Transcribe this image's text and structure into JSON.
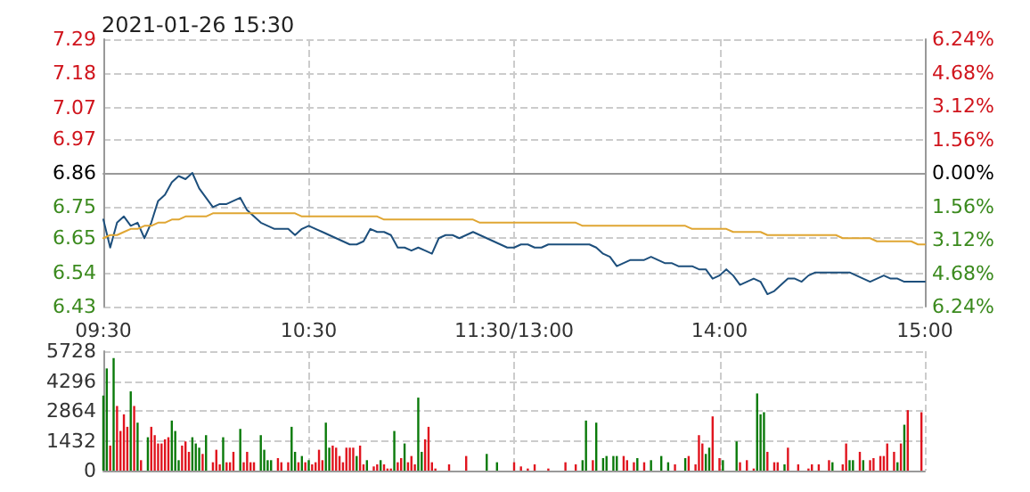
{
  "chart_data": [
    {
      "type": "line",
      "title": "2021-01-26 15:30",
      "categories": [
        "09:30",
        null,
        null,
        null,
        null,
        null,
        null,
        null,
        null,
        null,
        null,
        null,
        null,
        null,
        null,
        null,
        null,
        null,
        null,
        null,
        null,
        null,
        null,
        null,
        null,
        null,
        null,
        null,
        null,
        null,
        "10:30",
        null,
        null,
        null,
        null,
        null,
        null,
        null,
        null,
        null,
        null,
        null,
        null,
        null,
        null,
        null,
        null,
        null,
        null,
        null,
        null,
        null,
        null,
        null,
        null,
        null,
        null,
        null,
        null,
        null,
        "11:30/13:00",
        null,
        null,
        null,
        null,
        null,
        null,
        null,
        null,
        null,
        null,
        null,
        null,
        null,
        null,
        null,
        null,
        null,
        null,
        null,
        null,
        null,
        null,
        null,
        null,
        null,
        null,
        null,
        null,
        null,
        "14:00",
        null,
        null,
        null,
        null,
        null,
        null,
        null,
        null,
        null,
        null,
        null,
        null,
        null,
        null,
        null,
        null,
        null,
        null,
        null,
        null,
        null,
        null,
        null,
        null,
        null,
        null,
        null,
        null,
        null,
        "15:00"
      ],
      "ylim": [
        6.43,
        7.29
      ],
      "yticks": [
        6.43,
        6.54,
        6.65,
        6.75,
        6.86,
        6.97,
        7.07,
        7.18,
        7.29
      ],
      "y2lim": [
        -6.24,
        6.24
      ],
      "y2ticks": [
        {
          "value": -6.24,
          "label": "6.24%"
        },
        {
          "value": -4.68,
          "label": "4.68%"
        },
        {
          "value": -3.12,
          "label": "3.12%"
        },
        {
          "value": -1.56,
          "label": "1.56%"
        },
        {
          "value": 0,
          "label": "0.00%"
        },
        {
          "value": 1.56,
          "label": "1.56%"
        },
        {
          "value": 3.12,
          "label": "3.12%"
        },
        {
          "value": 4.68,
          "label": "4.68%"
        },
        {
          "value": 6.24,
          "label": "6.24%"
        }
      ],
      "grid": true,
      "marker": "none",
      "line_style": "solid",
      "series": [
        {
          "color": "#1d4f7c",
          "values": [
            6.71,
            6.62,
            6.7,
            6.72,
            6.69,
            6.7,
            6.65,
            6.7,
            6.77,
            6.79,
            6.83,
            6.85,
            6.84,
            6.86,
            6.81,
            6.78,
            6.75,
            6.76,
            6.76,
            6.77,
            6.78,
            6.74,
            6.72,
            6.7,
            6.69,
            6.68,
            6.68,
            6.68,
            6.66,
            6.68,
            6.69,
            6.68,
            6.67,
            6.66,
            6.65,
            6.64,
            6.63,
            6.63,
            6.64,
            6.68,
            6.67,
            6.67,
            6.66,
            6.62,
            6.62,
            6.61,
            6.62,
            6.61,
            6.6,
            6.65,
            6.66,
            6.66,
            6.65,
            6.66,
            6.67,
            6.66,
            6.65,
            6.64,
            6.63,
            6.62,
            6.62,
            6.63,
            6.63,
            6.62,
            6.62,
            6.63,
            6.63,
            6.63,
            6.63,
            6.63,
            6.63,
            6.63,
            6.62,
            6.6,
            6.59,
            6.56,
            6.57,
            6.58,
            6.58,
            6.58,
            6.59,
            6.58,
            6.57,
            6.57,
            6.56,
            6.56,
            6.56,
            6.55,
            6.55,
            6.52,
            6.53,
            6.55,
            6.53,
            6.5,
            6.51,
            6.52,
            6.51,
            6.47,
            6.48,
            6.5,
            6.52,
            6.52,
            6.51,
            6.53,
            6.54,
            6.54,
            6.54,
            6.54,
            6.54,
            6.54,
            6.53,
            6.52,
            6.51,
            6.52,
            6.53,
            6.52,
            6.52,
            6.51,
            6.51,
            6.51,
            6.51
          ]
        },
        {
          "color": "#e0a633",
          "values": [
            6.65,
            6.66,
            6.66,
            6.67,
            6.68,
            6.68,
            6.69,
            6.69,
            6.7,
            6.7,
            6.71,
            6.71,
            6.72,
            6.72,
            6.72,
            6.72,
            6.73,
            6.73,
            6.73,
            6.73,
            6.73,
            6.73,
            6.73,
            6.73,
            6.73,
            6.73,
            6.73,
            6.73,
            6.73,
            6.72,
            6.72,
            6.72,
            6.72,
            6.72,
            6.72,
            6.72,
            6.72,
            6.72,
            6.72,
            6.72,
            6.72,
            6.71,
            6.71,
            6.71,
            6.71,
            6.71,
            6.71,
            6.71,
            6.71,
            6.71,
            6.71,
            6.71,
            6.71,
            6.71,
            6.71,
            6.7,
            6.7,
            6.7,
            6.7,
            6.7,
            6.7,
            6.7,
            6.7,
            6.7,
            6.7,
            6.7,
            6.7,
            6.7,
            6.7,
            6.7,
            6.69,
            6.69,
            6.69,
            6.69,
            6.69,
            6.69,
            6.69,
            6.69,
            6.69,
            6.69,
            6.69,
            6.69,
            6.69,
            6.69,
            6.69,
            6.69,
            6.68,
            6.68,
            6.68,
            6.68,
            6.68,
            6.68,
            6.67,
            6.67,
            6.67,
            6.67,
            6.67,
            6.66,
            6.66,
            6.66,
            6.66,
            6.66,
            6.66,
            6.66,
            6.66,
            6.66,
            6.66,
            6.66,
            6.65,
            6.65,
            6.65,
            6.65,
            6.65,
            6.64,
            6.64,
            6.64,
            6.64,
            6.64,
            6.64,
            6.63,
            6.63
          ]
        }
      ]
    },
    {
      "type": "bar",
      "categories": [
        null,
        null,
        null,
        null,
        null,
        null,
        null,
        null,
        null,
        null,
        null,
        null,
        null,
        null,
        null,
        null,
        null,
        null,
        null,
        null,
        null,
        null,
        null,
        null,
        null,
        null,
        null,
        null,
        null,
        null,
        null,
        null,
        null,
        null,
        null,
        null,
        null,
        null,
        null,
        null,
        null,
        null,
        null,
        null,
        null,
        null,
        null,
        null,
        null,
        null,
        null,
        null,
        null,
        null,
        null,
        null,
        null,
        null,
        null,
        null,
        null,
        null,
        null,
        null,
        null,
        null,
        null,
        null,
        null,
        null,
        null,
        null,
        null,
        null,
        null,
        null,
        null,
        null,
        null,
        null,
        null,
        null,
        null,
        null,
        null,
        null,
        null,
        null,
        null,
        null,
        null,
        null,
        null,
        null,
        null,
        null,
        null,
        null,
        null,
        null,
        null,
        null,
        null,
        null,
        null,
        null,
        null,
        null,
        null,
        null,
        null,
        null,
        null,
        null,
        null,
        null,
        null,
        null,
        null,
        null,
        null,
        null,
        null,
        null,
        null,
        null,
        null,
        null,
        null,
        null,
        null,
        null,
        null,
        null,
        null,
        null,
        null,
        null,
        null,
        null,
        null,
        null,
        null,
        null,
        null,
        null,
        null,
        null,
        null,
        null,
        null,
        null,
        null,
        null,
        null,
        null,
        null,
        null,
        null,
        null,
        null,
        null,
        null,
        null,
        null,
        null,
        null,
        null,
        null,
        null,
        null,
        null,
        null,
        null,
        null,
        null,
        null,
        null,
        null,
        null,
        null,
        null,
        null,
        null,
        null,
        null,
        null,
        null,
        null,
        null,
        null,
        null,
        null,
        null,
        null,
        null,
        null,
        null,
        null,
        null,
        null,
        null,
        null,
        null,
        null,
        null,
        null,
        null,
        null,
        null,
        null,
        null,
        null,
        null,
        null,
        null,
        null,
        null,
        null,
        null,
        null,
        null,
        null,
        null,
        null,
        null,
        null,
        null,
        null,
        null,
        null,
        null,
        null,
        null,
        null,
        null,
        null,
        null,
        null,
        null,
        null
      ],
      "ylim": [
        0,
        5728
      ],
      "yticks": [
        0,
        1432,
        2864,
        4296,
        5728
      ],
      "grid": true,
      "tick_labels": "y",
      "values": [
        3600,
        4900,
        1200,
        5400,
        3100,
        1900,
        2700,
        2100,
        3800,
        3100,
        2300,
        500,
        null,
        1600,
        2100,
        1700,
        1300,
        1300,
        1500,
        1600,
        2400,
        1900,
        500,
        1200,
        1400,
        900,
        1600,
        1300,
        1100,
        800,
        1700,
        null,
        400,
        1000,
        300,
        1600,
        400,
        400,
        900,
        null,
        2000,
        400,
        900,
        400,
        400,
        null,
        1700,
        1000,
        500,
        500,
        null,
        600,
        400,
        null,
        400,
        2100,
        900,
        400,
        700,
        400,
        500,
        300,
        400,
        1000,
        500,
        2300,
        1100,
        1200,
        1100,
        700,
        400,
        1100,
        1100,
        1100,
        700,
        1200,
        300,
        500,
        null,
        200,
        300,
        500,
        300,
        100,
        100,
        1900,
        400,
        600,
        1300,
        400,
        700,
        300,
        3500,
        900,
        1500,
        2100,
        400,
        100,
        null,
        null,
        null,
        300,
        null,
        null,
        null,
        null,
        700,
        null,
        null,
        null,
        null,
        null,
        800,
        null,
        null,
        400,
        null,
        null,
        null,
        null,
        400,
        null,
        200,
        null,
        100,
        null,
        300,
        null,
        null,
        null,
        100,
        null,
        null,
        null,
        null,
        400,
        null,
        null,
        300,
        null,
        500,
        2400,
        null,
        500,
        2300,
        null,
        600,
        700,
        null,
        700,
        700,
        null,
        700,
        500,
        null,
        400,
        600,
        null,
        400,
        null,
        500,
        null,
        null,
        700,
        null,
        400,
        null,
        300,
        null,
        null,
        600,
        700,
        null,
        300,
        1700,
        1300,
        800,
        1100,
        2600,
        null,
        600,
        500,
        null,
        null,
        null,
        1400,
        400,
        null,
        500,
        null,
        100,
        3700,
        2700,
        2800,
        900,
        null,
        400,
        400,
        null,
        300,
        1100,
        null,
        null,
        300,
        null,
        null,
        100,
        300,
        null,
        300,
        null,
        null,
        500,
        400,
        null,
        null,
        300,
        1300,
        500,
        500,
        null,
        900,
        500,
        null,
        500,
        600,
        null,
        700,
        700,
        1300,
        null,
        900,
        400,
        1300,
        2200,
        2900,
        null,
        null,
        null,
        2800,
        null
      ],
      "colors": [
        "#0a7a0a",
        "#0a7a0a",
        "#e0141e",
        "#0a7a0a",
        "#e0141e",
        "#e0141e",
        "#e0141e",
        "#e0141e",
        "#0a7a0a",
        "#e0141e",
        "#0a7a0a",
        "#e0141e",
        null,
        "#0a7a0a",
        "#e0141e",
        "#e0141e",
        "#e0141e",
        "#e0141e",
        "#e0141e",
        "#e0141e",
        "#0a7a0a",
        "#0a7a0a",
        "#0a7a0a",
        "#e0141e",
        "#e0141e",
        "#e0141e",
        "#0a7a0a",
        "#0a7a0a",
        "#0a7a0a",
        "#e0141e",
        "#0a7a0a",
        null,
        "#e0141e",
        "#e0141e",
        "#e0141e",
        "#0a7a0a",
        "#e0141e",
        "#e0141e",
        "#e0141e",
        null,
        "#0a7a0a",
        "#e0141e",
        "#e0141e",
        "#e0141e",
        "#e0141e",
        null,
        "#0a7a0a",
        "#0a7a0a",
        "#0a7a0a",
        "#0a7a0a",
        null,
        "#e0141e",
        "#e0141e",
        null,
        "#e0141e",
        "#0a7a0a",
        "#0a7a0a",
        "#e0141e",
        "#0a7a0a",
        "#e0141e",
        "#0a7a0a",
        "#e0141e",
        "#e0141e",
        "#e0141e",
        "#e0141e",
        "#0a7a0a",
        "#0a7a0a",
        "#e0141e",
        "#e0141e",
        "#e0141e",
        "#e0141e",
        "#e0141e",
        "#e0141e",
        "#e0141e",
        "#0a7a0a",
        "#e0141e",
        "#e0141e",
        "#0a7a0a",
        null,
        "#e0141e",
        "#e0141e",
        "#0a7a0a",
        "#e0141e",
        "#e0141e",
        "#e0141e",
        "#0a7a0a",
        "#e0141e",
        "#e0141e",
        "#0a7a0a",
        "#e0141e",
        "#e0141e",
        "#e0141e",
        "#0a7a0a",
        "#0a7a0a",
        "#e0141e",
        "#e0141e",
        "#e0141e",
        "#e0141e",
        null,
        null,
        null,
        "#e0141e",
        null,
        null,
        null,
        null,
        "#e0141e",
        null,
        null,
        null,
        null,
        null,
        "#0a7a0a",
        null,
        null,
        "#0a7a0a",
        null,
        null,
        null,
        null,
        "#e0141e",
        null,
        "#e0141e",
        null,
        "#e0141e",
        null,
        "#e0141e",
        null,
        null,
        null,
        "#e0141e",
        null,
        null,
        null,
        null,
        "#e0141e",
        null,
        null,
        "#e0141e",
        null,
        "#0a7a0a",
        "#0a7a0a",
        null,
        "#e0141e",
        "#0a7a0a",
        null,
        "#0a7a0a",
        "#0a7a0a",
        null,
        "#0a7a0a",
        "#0a7a0a",
        null,
        "#e0141e",
        "#e0141e",
        null,
        "#e0141e",
        "#0a7a0a",
        null,
        "#e0141e",
        null,
        "#0a7a0a",
        null,
        null,
        "#0a7a0a",
        null,
        "#0a7a0a",
        null,
        "#e0141e",
        null,
        null,
        "#0a7a0a",
        "#e0141e",
        null,
        "#e0141e",
        "#e0141e",
        "#e0141e",
        "#0a7a0a",
        "#0a7a0a",
        "#e0141e",
        null,
        "#e0141e",
        "#0a7a0a",
        null,
        null,
        null,
        "#0a7a0a",
        "#e0141e",
        null,
        "#e0141e",
        null,
        "#e0141e",
        "#0a7a0a",
        "#0a7a0a",
        "#0a7a0a",
        "#e0141e",
        null,
        "#e0141e",
        "#e0141e",
        null,
        "#0a7a0a",
        "#e0141e",
        null,
        null,
        "#e0141e",
        null,
        null,
        "#e0141e",
        "#e0141e",
        null,
        "#e0141e",
        null,
        null,
        "#e0141e",
        "#0a7a0a",
        null,
        null,
        "#e0141e",
        "#e0141e",
        "#0a7a0a",
        "#0a7a0a",
        null,
        "#e0141e",
        "#0a7a0a",
        null,
        "#e0141e",
        "#e0141e",
        null,
        "#e0141e",
        "#e0141e",
        "#e0141e",
        null,
        "#e0141e",
        "#0a7a0a",
        "#e0141e",
        "#0a7a0a",
        "#e0141e",
        null,
        null,
        null,
        "#e0141e",
        null
      ]
    }
  ]
}
